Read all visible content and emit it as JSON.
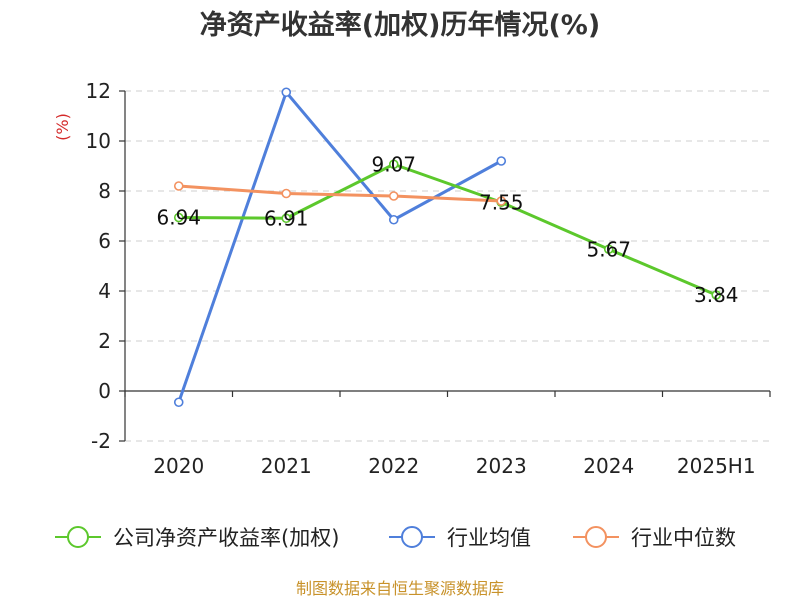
{
  "chart_data": {
    "type": "line",
    "title": "净资产收益率(加权)历年情况(%)",
    "ylabel": "(%)",
    "categories": [
      "2020",
      "2021",
      "2022",
      "2023",
      "2024",
      "2025H1"
    ],
    "ylim": [
      -2,
      12
    ],
    "yticks": [
      -2,
      0,
      2,
      4,
      6,
      8,
      10,
      12
    ],
    "grid": true,
    "legend_position": "bottom",
    "series": [
      {
        "name": "公司净资产收益率(加权)",
        "color": "#5cc82c",
        "values": [
          6.94,
          6.91,
          9.07,
          7.55,
          5.67,
          3.84
        ],
        "labels": [
          "6.94",
          "6.91",
          "9.07",
          "7.55",
          "5.67",
          "3.84"
        ]
      },
      {
        "name": "行业均值",
        "color": "#4f7fdb",
        "values": [
          -0.45,
          11.95,
          6.85,
          9.2,
          null,
          null
        ]
      },
      {
        "name": "行业中位数",
        "color": "#f39260",
        "values": [
          8.2,
          7.9,
          7.8,
          7.6,
          null,
          null
        ]
      }
    ],
    "source": "制图数据来自恒生聚源数据库"
  }
}
